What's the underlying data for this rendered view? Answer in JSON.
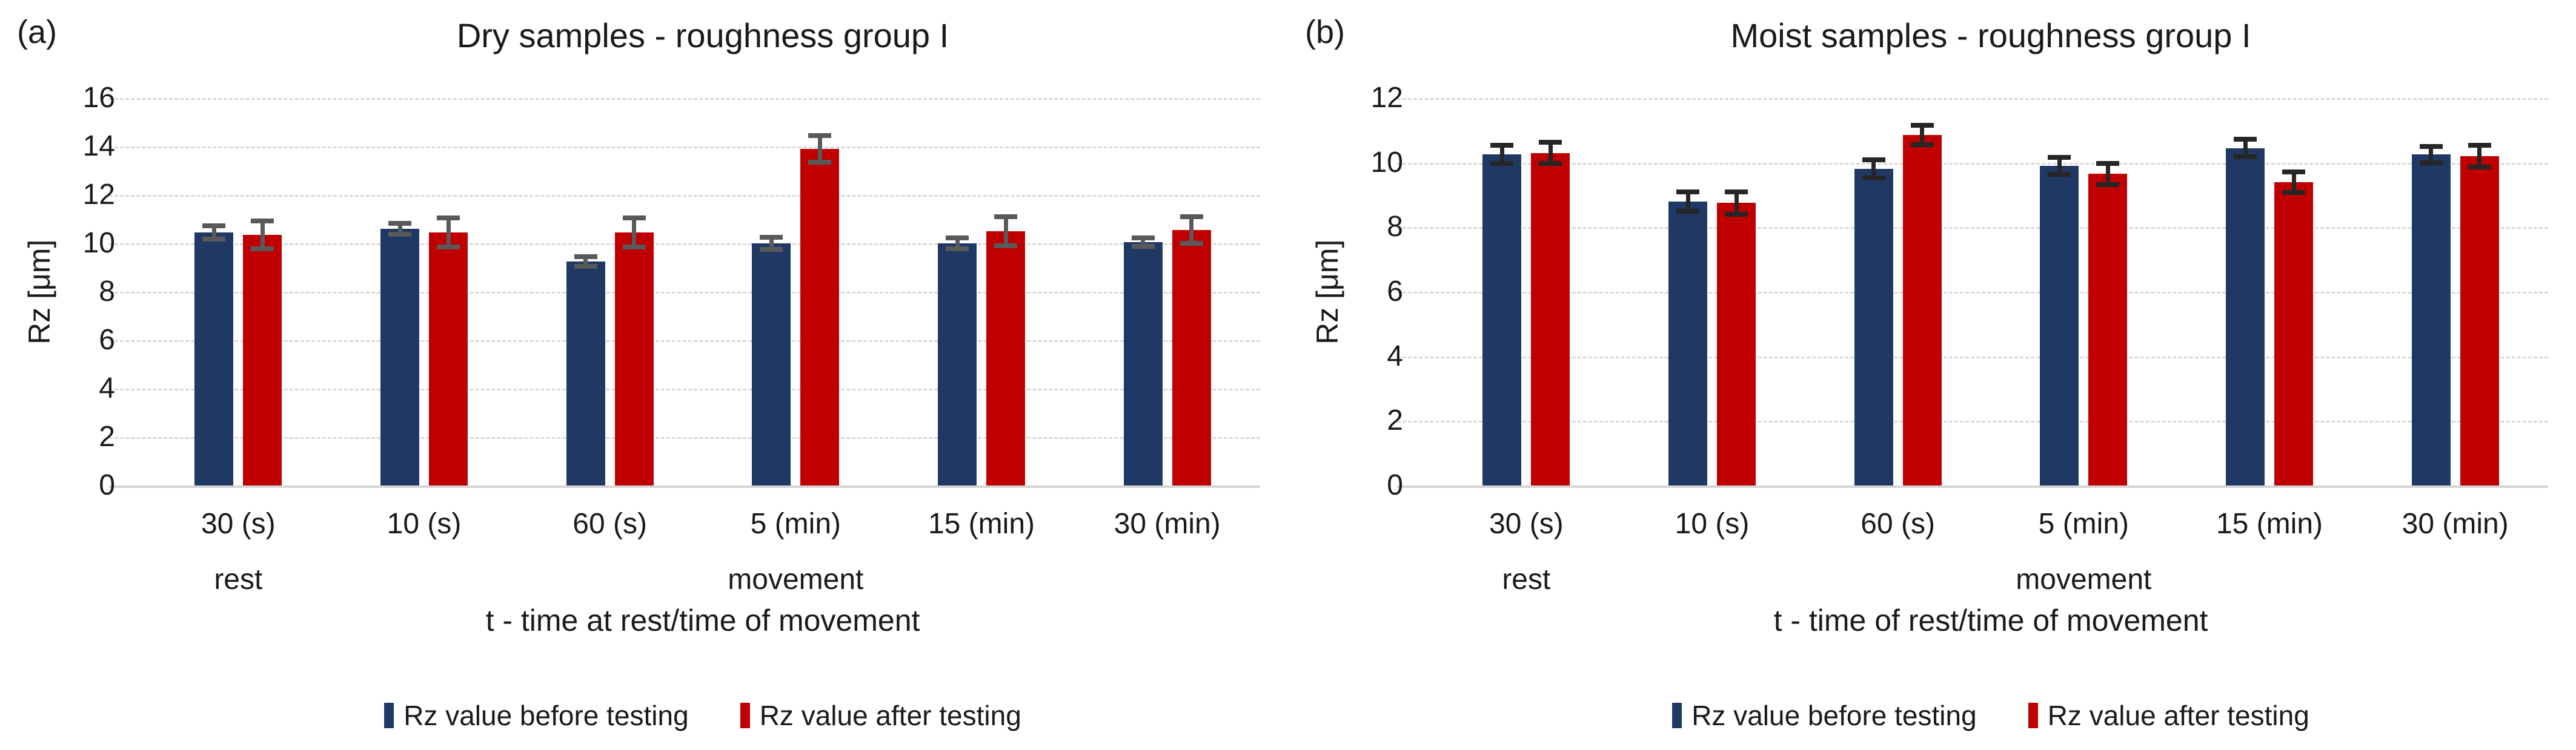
{
  "chart_data": [
    {
      "type": "bar",
      "panel_label": "(a)",
      "title": "Dry samples - roughness group I",
      "ylabel": "Rz [μm]",
      "xlabel": "t - time at rest/time of movement",
      "ylim": [
        0,
        16
      ],
      "ytick_step": 2,
      "grid": true,
      "legend_position": "bottom",
      "categories": [
        "30 (s)",
        "10 (s)",
        "60 (s)",
        "5 (min)",
        "15 (min)",
        "30 (min)"
      ],
      "category_sublabels": [
        "rest",
        "",
        "",
        "movement",
        "",
        ""
      ],
      "error_bar_color": "#595959",
      "series": [
        {
          "name": "Rz value before testing",
          "color": "#1f3864",
          "values": [
            10.45,
            10.6,
            9.25,
            10.0,
            10.0,
            10.05
          ],
          "errors": [
            0.27,
            0.22,
            0.2,
            0.25,
            0.22,
            0.17
          ]
        },
        {
          "name": "Rz value after testing",
          "color": "#c00000",
          "values": [
            10.35,
            10.45,
            10.45,
            13.9,
            10.5,
            10.55
          ],
          "errors": [
            0.57,
            0.6,
            0.6,
            0.55,
            0.6,
            0.55
          ]
        }
      ]
    },
    {
      "type": "bar",
      "panel_label": "(b)",
      "title": "Moist samples - roughness group I",
      "ylabel": "Rz [μm]",
      "xlabel": "t - time of rest/time of movement",
      "ylim": [
        0,
        12
      ],
      "ytick_step": 2,
      "grid": true,
      "legend_position": "bottom",
      "categories": [
        "30 (s)",
        "10 (s)",
        "60 (s)",
        "5 (min)",
        "15 (min)",
        "30 (min)"
      ],
      "category_sublabels": [
        "rest",
        "",
        "",
        "movement",
        "",
        ""
      ],
      "error_bar_color": "#262626",
      "series": [
        {
          "name": "Rz value before testing",
          "color": "#1f3864",
          "values": [
            10.25,
            8.8,
            9.8,
            9.9,
            10.45,
            10.25
          ],
          "errors": [
            0.28,
            0.3,
            0.28,
            0.27,
            0.27,
            0.25
          ]
        },
        {
          "name": "Rz value after testing",
          "color": "#c00000",
          "values": [
            10.3,
            8.75,
            10.85,
            9.65,
            9.4,
            10.2
          ],
          "errors": [
            0.33,
            0.35,
            0.3,
            0.33,
            0.32,
            0.33
          ]
        }
      ]
    }
  ]
}
